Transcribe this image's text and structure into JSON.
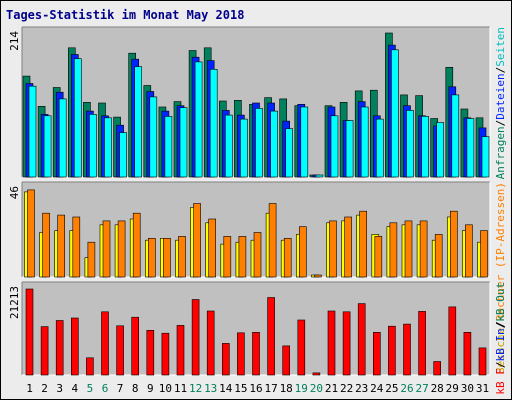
{
  "title": "Tages-Statistik im Monat May 2018",
  "colors": {
    "panel_bg": "#c0c0c0",
    "hits": "#00805c",
    "files": "#0024ff",
    "pages": "#00ffff",
    "visits": "#ffff00",
    "sites": "#ff8000",
    "kbytes": "#ff0000",
    "weekend_label": "#00805c",
    "weekday_label": "#000000"
  },
  "legend": {
    "top": [
      {
        "text": "Anfragen",
        "color": "#00805c"
      },
      {
        "text": "/",
        "color": "#000000"
      },
      {
        "text": "Dateien",
        "color": "#0024ff"
      },
      {
        "text": "/",
        "color": "#000000"
      },
      {
        "text": "Seiten",
        "color": "#00bcbc"
      }
    ],
    "middle": [
      {
        "text": "Besuche",
        "color": "#c8a000"
      },
      {
        "text": "/",
        "color": "#000000"
      },
      {
        "text": "Rechner (IP-Adressen)",
        "color": "#ff8000"
      }
    ],
    "bottom": [
      {
        "text": "kB F",
        "color": "#ff0000"
      },
      {
        "text": "/",
        "color": "#000000"
      },
      {
        "text": "kB In",
        "color": "#0024ff"
      },
      {
        "text": "/",
        "color": "#000000"
      },
      {
        "text": "kB Out",
        "color": "#00805c"
      }
    ]
  },
  "chart_data": {
    "type": "bar",
    "categories": [
      "1",
      "2",
      "3",
      "4",
      "5",
      "6",
      "7",
      "8",
      "9",
      "10",
      "11",
      "12",
      "13",
      "14",
      "15",
      "16",
      "17",
      "18",
      "19",
      "20",
      "21",
      "22",
      "23",
      "24",
      "25",
      "26",
      "27",
      "28",
      "29",
      "30",
      "31"
    ],
    "weekend_days": [
      "5",
      "6",
      "12",
      "13",
      "19",
      "20",
      "26",
      "27"
    ],
    "panels": [
      {
        "max_label": "214",
        "ylim": [
          0,
          214
        ],
        "series": [
          {
            "name": "Anfragen",
            "values": [
              150,
              105,
              133,
              192,
              111,
              110,
              89,
              184,
              136,
              104,
              112,
              188,
              192,
              113,
              114,
              108,
              118,
              116,
              106,
              3,
              106,
              111,
              128,
              129,
              214,
              122,
              121,
              87,
              163,
              101,
              88
            ]
          },
          {
            "name": "Dateien",
            "values": [
              139,
              93,
              126,
              182,
              98,
              91,
              77,
              175,
              127,
              98,
              106,
              178,
              173,
              99,
              92,
              110,
              110,
              83,
              108,
              2,
              104,
              84,
              112,
              91,
              196,
              106,
              91,
              76,
              134,
              88,
              73
            ]
          },
          {
            "name": "Seiten",
            "values": [
              135,
              91,
              116,
              176,
              93,
              88,
              66,
              164,
              119,
              90,
              103,
              171,
              160,
              92,
              86,
              102,
              98,
              72,
              104,
              2,
              91,
              84,
              104,
              86,
              189,
              99,
              90,
              81,
              122,
              87,
              60
            ]
          }
        ]
      },
      {
        "max_label": "46",
        "ylim": [
          0,
          46
        ],
        "series": [
          {
            "name": "Besuche",
            "values": [
              44,
              23,
              24,
              24,
              10,
              27,
              27,
              30,
              19,
              20,
              19,
              36,
              28,
              17,
              18,
              19,
              33,
              19,
              22,
              1,
              28,
              29,
              32,
              22,
              26,
              27,
              27,
              19,
              31,
              24,
              18
            ]
          },
          {
            "name": "Rechner (IP-Adressen)",
            "values": [
              45,
              33,
              32,
              31,
              18,
              29,
              29,
              33,
              20,
              20,
              21,
              38,
              30,
              21,
              21,
              23,
              38,
              20,
              26,
              1,
              29,
              31,
              34,
              21,
              28,
              29,
              29,
              22,
              34,
              27,
              24
            ]
          }
        ]
      },
      {
        "max_label": "21213",
        "ylim": [
          0,
          21213
        ],
        "series": [
          {
            "name": "kB F",
            "values": [
              20980,
              11800,
              13300,
              13900,
              4200,
              15400,
              12000,
              14100,
              10900,
              10200,
              12100,
              18400,
              15600,
              7700,
              10300,
              10400,
              18900,
              7100,
              13400,
              520,
              15600,
              15400,
              17400,
              10400,
              11900,
              12400,
              15500,
              3300,
              16600,
              10400,
              6600
            ]
          }
        ]
      }
    ]
  }
}
